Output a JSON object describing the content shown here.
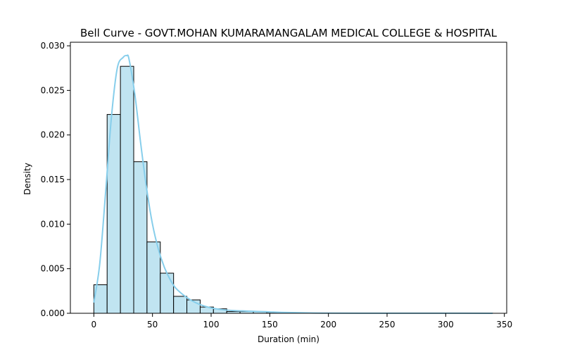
{
  "chart_data": {
    "type": "bar",
    "title": "Bell Curve - GOVT.MOHAN KUMARAMANGALAM MEDICAL COLLEGE & HOSPITAL",
    "xlabel": "Duration (min)",
    "ylabel": "Density",
    "xlim": [
      -20,
      352
    ],
    "ylim": [
      0,
      0.0304
    ],
    "xticks": [
      0,
      50,
      100,
      150,
      200,
      250,
      300,
      350
    ],
    "yticks": [
      0.0,
      0.005,
      0.01,
      0.015,
      0.02,
      0.025,
      0.03
    ],
    "ytick_labels": [
      "0.000",
      "0.005",
      "0.010",
      "0.015",
      "0.020",
      "0.025",
      "0.030"
    ],
    "bins": {
      "edges": [
        0,
        11.33,
        22.67,
        34,
        45.33,
        56.67,
        68,
        79.33,
        90.67,
        102,
        113.33,
        124.67,
        136,
        147.33,
        158.67,
        170,
        181.33,
        192.67,
        204,
        215.33,
        226.67,
        238,
        249.33,
        260.67,
        272,
        283.33,
        294.67,
        306,
        317.33,
        328.67,
        340
      ],
      "densities": [
        0.0032,
        0.0223,
        0.0277,
        0.017,
        0.008,
        0.0045,
        0.0019,
        0.0015,
        0.0007,
        0.0005,
        0.0002,
        0.0002,
        0.0002,
        0.0001,
        5e-05,
        3e-05,
        2e-05,
        1e-05,
        1e-05,
        1e-05,
        1e-05,
        1e-05,
        1e-05,
        1e-05,
        1e-05,
        1e-05,
        1e-05,
        1e-05,
        1e-05,
        1e-05
      ]
    },
    "kde": {
      "x": [
        0,
        5,
        10,
        15,
        20,
        25,
        28,
        30,
        35,
        40,
        45,
        50,
        55,
        60,
        65,
        70,
        80,
        90,
        100,
        110,
        120,
        130,
        140,
        150,
        160,
        180,
        200,
        250,
        300,
        340
      ],
      "y": [
        0.0012,
        0.0055,
        0.0135,
        0.022,
        0.0275,
        0.0287,
        0.0289,
        0.0285,
        0.0245,
        0.019,
        0.014,
        0.01,
        0.0072,
        0.0052,
        0.0038,
        0.0028,
        0.0017,
        0.001,
        0.0006,
        0.0004,
        0.0003,
        0.00025,
        0.0002,
        0.00015,
        0.0001,
        5e-05,
        2e-05,
        1e-05,
        1e-05,
        0.0
      ]
    },
    "colors": {
      "bar_fill": "#c0e4f1",
      "bar_stroke": "#000000",
      "kde_line": "#87ceeb"
    },
    "grid": false,
    "legend": "none"
  }
}
